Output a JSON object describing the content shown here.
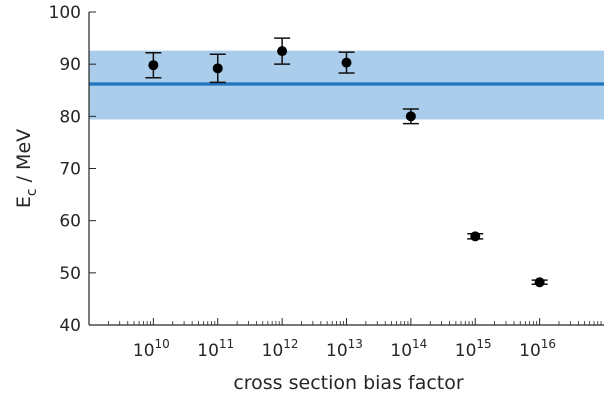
{
  "chart_data": {
    "type": "scatter",
    "title": "",
    "xlabel": "cross section bias factor",
    "ylabel": "E",
    "ylabel_subscript": "c",
    "ylabel_suffix": " / MeV",
    "x_scale": "log",
    "xlim": [
      1000000000.0,
      1e+17
    ],
    "ylim": [
      40,
      100
    ],
    "grid": false,
    "legend": "none",
    "x_ticks": [
      {
        "value": 10000000000.0,
        "base": "10",
        "exp": "10"
      },
      {
        "value": 100000000000.0,
        "base": "10",
        "exp": "11"
      },
      {
        "value": 1000000000000.0,
        "base": "10",
        "exp": "12"
      },
      {
        "value": 10000000000000.0,
        "base": "10",
        "exp": "13"
      },
      {
        "value": 100000000000000.0,
        "base": "10",
        "exp": "14"
      },
      {
        "value": 1000000000000000.0,
        "base": "10",
        "exp": "15"
      },
      {
        "value": 1e+16,
        "base": "10",
        "exp": "16"
      }
    ],
    "y_ticks": [
      {
        "value": 40,
        "label": "40"
      },
      {
        "value": 50,
        "label": "50"
      },
      {
        "value": 60,
        "label": "60"
      },
      {
        "value": 70,
        "label": "70"
      },
      {
        "value": 80,
        "label": "80"
      },
      {
        "value": 90,
        "label": "90"
      },
      {
        "value": 100,
        "label": "100"
      }
    ],
    "reference_band": {
      "value": 86.2,
      "lower": 79.4,
      "upper": 92.6,
      "line_color": "#1f72bd",
      "fill_color": "#a9cdea"
    },
    "points": [
      {
        "x": 10000000000.0,
        "y": 89.8,
        "err_low": 87.4,
        "err_high": 92.2
      },
      {
        "x": 100000000000.0,
        "y": 89.2,
        "err_low": 86.5,
        "err_high": 91.9
      },
      {
        "x": 1000000000000.0,
        "y": 92.5,
        "err_low": 90.0,
        "err_high": 95.0
      },
      {
        "x": 10000000000000.0,
        "y": 90.3,
        "err_low": 88.3,
        "err_high": 92.3
      },
      {
        "x": 100000000000000.0,
        "y": 80.0,
        "err_low": 78.6,
        "err_high": 81.4
      },
      {
        "x": 1000000000000000.0,
        "y": 57.0,
        "err_low": 56.5,
        "err_high": 57.5
      },
      {
        "x": 1e+16,
        "y": 48.2,
        "err_low": 47.8,
        "err_high": 48.6
      }
    ],
    "marker_color": "#000000"
  }
}
